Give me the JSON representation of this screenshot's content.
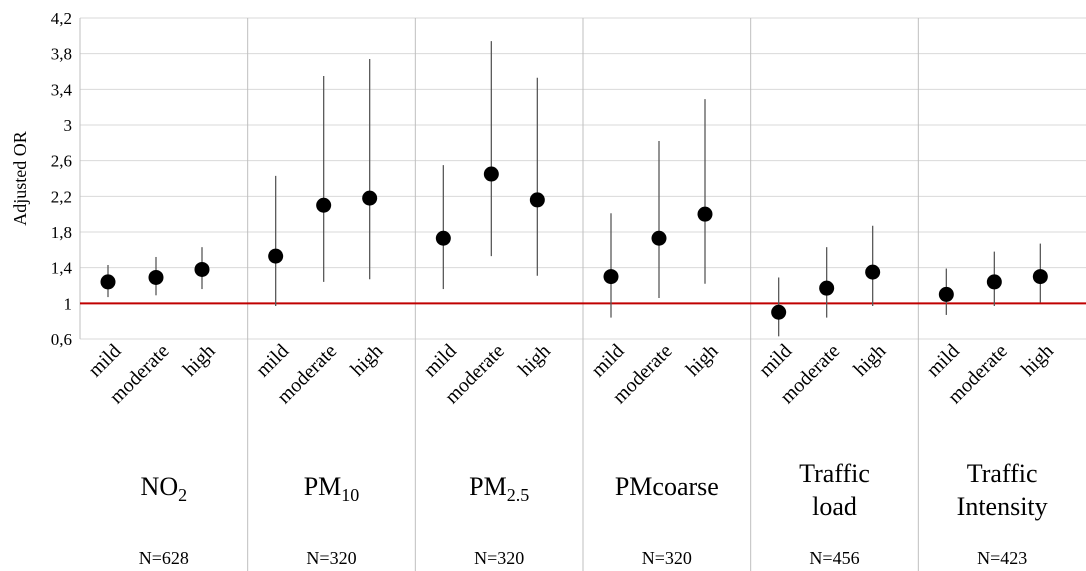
{
  "chart_data": {
    "type": "scatter",
    "ylabel": "Adjusted OR",
    "ylim": [
      0.6,
      4.2
    ],
    "yticks": [
      "0,6",
      "1",
      "1,4",
      "1,8",
      "2,2",
      "2,6",
      "3",
      "3,4",
      "3,8",
      "4,2"
    ],
    "ytick_values": [
      0.6,
      1.0,
      1.4,
      1.8,
      2.2,
      2.6,
      3.0,
      3.4,
      3.8,
      4.2
    ],
    "grid": true,
    "reference_line": {
      "y": 1,
      "color": "#c00000"
    },
    "marker_color": "#000000",
    "error_bar_color": "#595959",
    "groups": [
      {
        "label_lines": [
          {
            "base": "NO",
            "sub": "2"
          }
        ],
        "n": "N=628",
        "points": [
          {
            "category": "mild",
            "y": 1.24,
            "low": 1.07,
            "high": 1.43
          },
          {
            "category": "moderate",
            "y": 1.29,
            "low": 1.09,
            "high": 1.52
          },
          {
            "category": "high",
            "y": 1.38,
            "low": 1.16,
            "high": 1.63
          }
        ]
      },
      {
        "label_lines": [
          {
            "base": "PM",
            "sub": "10"
          }
        ],
        "n": "N=320",
        "points": [
          {
            "category": "mild",
            "y": 1.53,
            "low": 0.97,
            "high": 2.43
          },
          {
            "category": "moderate",
            "y": 2.1,
            "low": 1.24,
            "high": 3.55
          },
          {
            "category": "high",
            "y": 2.18,
            "low": 1.27,
            "high": 3.74
          }
        ]
      },
      {
        "label_lines": [
          {
            "base": "PM",
            "sub": "2.5"
          }
        ],
        "n": "N=320",
        "points": [
          {
            "category": "mild",
            "y": 1.73,
            "low": 1.16,
            "high": 2.55
          },
          {
            "category": "moderate",
            "y": 2.45,
            "low": 1.53,
            "high": 3.94
          },
          {
            "category": "high",
            "y": 2.16,
            "low": 1.31,
            "high": 3.53
          }
        ]
      },
      {
        "label_lines": [
          {
            "base": "PMcoarse",
            "sub": ""
          }
        ],
        "n": "N=320",
        "points": [
          {
            "category": "mild",
            "y": 1.3,
            "low": 0.84,
            "high": 2.01
          },
          {
            "category": "moderate",
            "y": 1.73,
            "low": 1.06,
            "high": 2.82
          },
          {
            "category": "high",
            "y": 2.0,
            "low": 1.22,
            "high": 3.29
          }
        ]
      },
      {
        "label_lines": [
          {
            "base": "Traffic",
            "sub": ""
          },
          {
            "base": "load",
            "sub": ""
          }
        ],
        "n": "N=456",
        "points": [
          {
            "category": "mild",
            "y": 0.9,
            "low": 0.63,
            "high": 1.29
          },
          {
            "category": "moderate",
            "y": 1.17,
            "low": 0.84,
            "high": 1.63
          },
          {
            "category": "high",
            "y": 1.35,
            "low": 0.97,
            "high": 1.87
          }
        ]
      },
      {
        "label_lines": [
          {
            "base": "Traffic",
            "sub": ""
          },
          {
            "base": "Intensity",
            "sub": ""
          }
        ],
        "n": "N=423",
        "points": [
          {
            "category": "mild",
            "y": 1.1,
            "low": 0.87,
            "high": 1.39
          },
          {
            "category": "moderate",
            "y": 1.24,
            "low": 0.97,
            "high": 1.58
          },
          {
            "category": "high",
            "y": 1.3,
            "low": 1.01,
            "high": 1.67
          }
        ]
      }
    ]
  }
}
